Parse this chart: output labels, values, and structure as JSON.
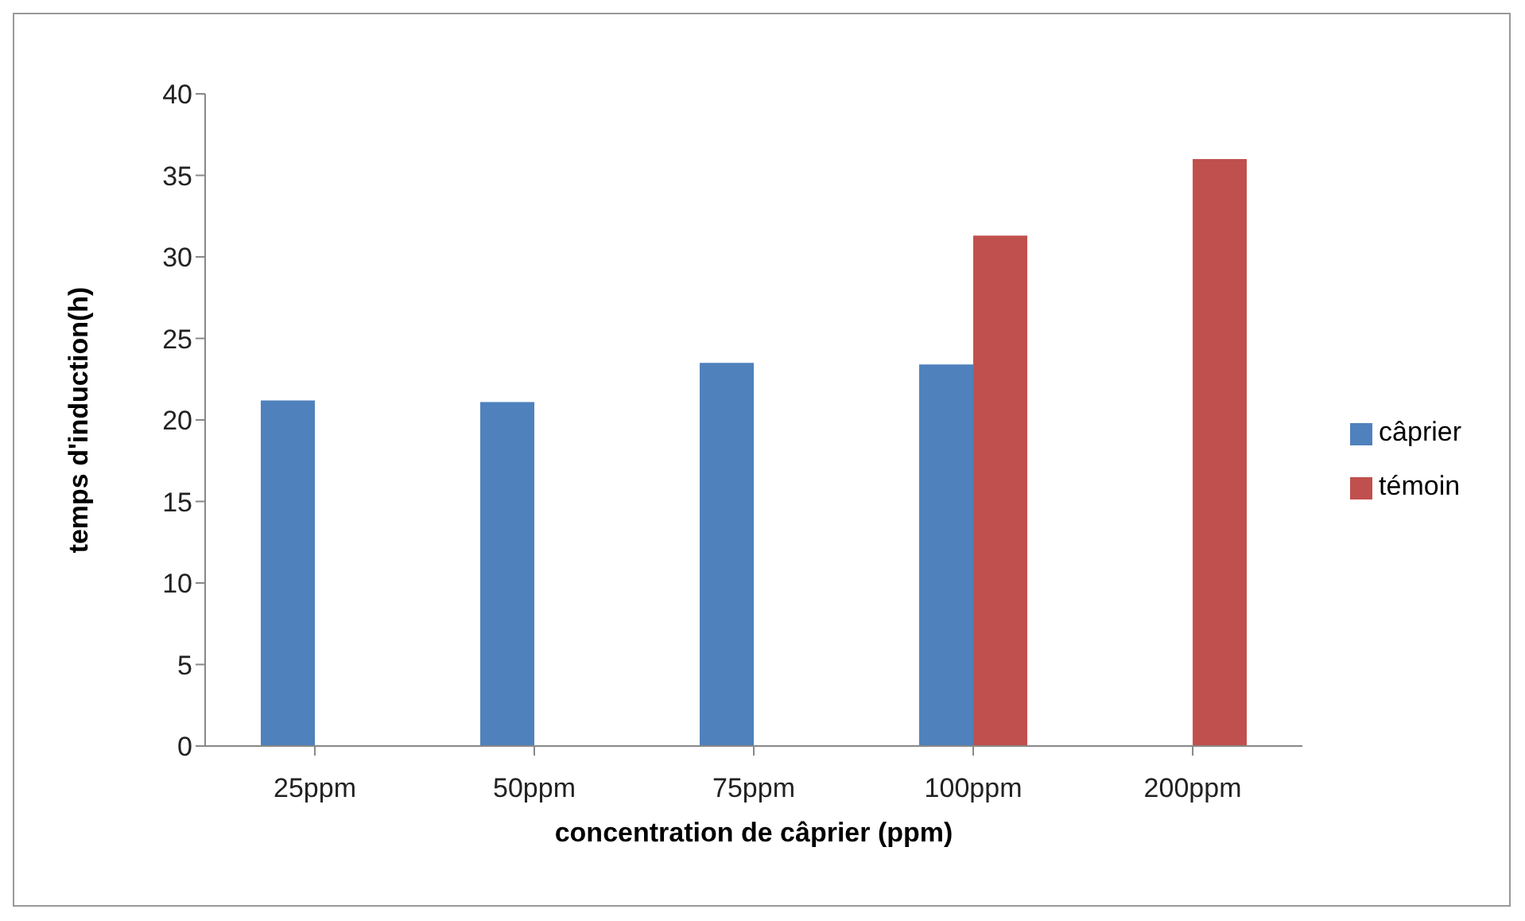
{
  "chart_data": {
    "type": "bar",
    "xlabel": "concentration de câprier  (ppm)",
    "ylabel": "temps  d'induction(h)",
    "categories": [
      "25ppm",
      "50ppm",
      "75ppm",
      "100ppm",
      "200ppm"
    ],
    "series": [
      {
        "name": "câprier",
        "color": "#4f81bd",
        "values": [
          21.2,
          21.1,
          23.5,
          23.4,
          null
        ]
      },
      {
        "name": "témoin",
        "color": "#c0504d",
        "values": [
          null,
          null,
          null,
          31.3,
          36
        ]
      }
    ],
    "ylim": [
      0,
      40
    ],
    "yticks": [
      0,
      5,
      10,
      15,
      20,
      25,
      30,
      35,
      40
    ],
    "grid": false,
    "legend": "right"
  }
}
